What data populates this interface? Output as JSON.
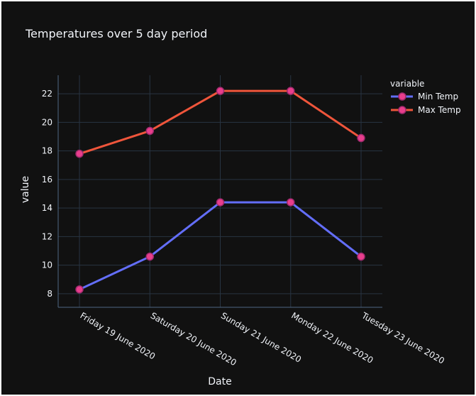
{
  "chart_data": {
    "type": "line",
    "title": "Temperatures over 5 day period",
    "xlabel": "Date",
    "ylabel": "value",
    "categories": [
      "Friday 19 June 2020",
      "Saturday 20 June 2020",
      "Sunday 21 June 2020",
      "Monday 22 June 2020",
      "Tuesday 23 June 2020"
    ],
    "series": [
      {
        "name": "Min Temp",
        "values": [
          8.3,
          10.6,
          14.4,
          14.4,
          10.6
        ],
        "color": "#636efa"
      },
      {
        "name": "Max Temp",
        "values": [
          17.8,
          19.4,
          22.2,
          22.2,
          18.9
        ],
        "color": "#ef553b"
      }
    ],
    "marker_fill": "#e83e8c",
    "marker_stroke": "#a02a6e",
    "yticks": [
      8,
      10,
      12,
      14,
      16,
      18,
      20,
      22
    ],
    "ylim": [
      7.05,
      23.3
    ],
    "legend_title": "variable",
    "legend_position": "top-right",
    "grid": true,
    "background": "#111111",
    "grid_color": "#283442"
  }
}
